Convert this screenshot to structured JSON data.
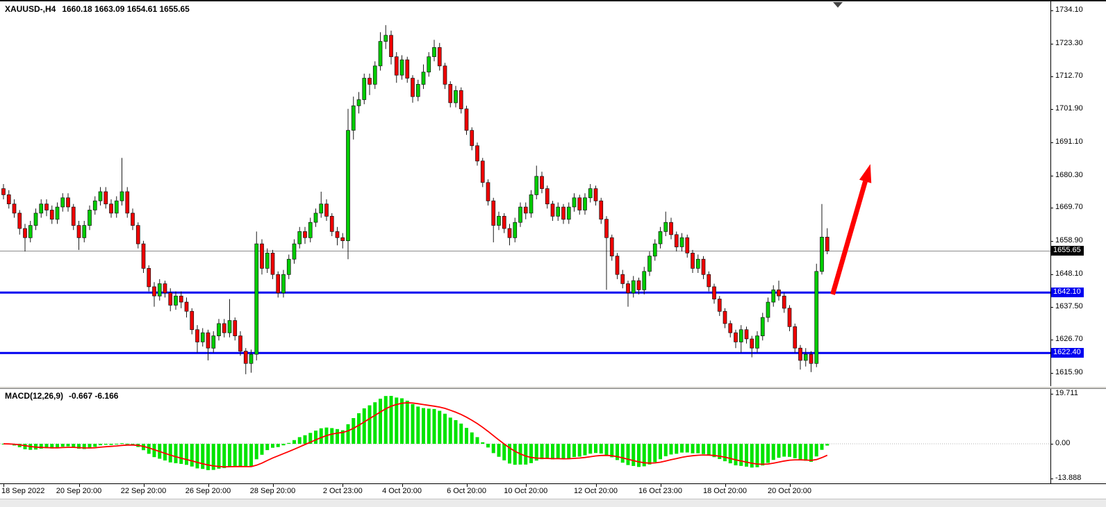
{
  "header": {
    "symbol_period": "XAUUSD-,H4",
    "ohlc": "1660.18 1663.09 1654.61 1655.65"
  },
  "colors": {
    "up": "#00CC00",
    "down": "#EE0000",
    "candle_border": "#111111",
    "wick": "#1b1b1b",
    "hline": "#0000F0",
    "price_line": "#8c8c8c",
    "arrow": "#FE0000",
    "macd_hist": "#00E400",
    "macd_signal": "#FF0000",
    "badge_current_bg": "#000000",
    "badge_line_bg": "#0000F0"
  },
  "chart_data": {
    "type": "candlestick",
    "symbol": "XAUUSD-",
    "timeframe": "H4",
    "title": "XAUUSD-,H4",
    "current": {
      "open": 1660.18,
      "high": 1663.09,
      "low": 1654.61,
      "close": 1655.65
    },
    "current_price_label": "1655.65",
    "price_axis": {
      "ticks": [
        "1734.10",
        "1723.30",
        "1712.70",
        "1701.90",
        "1691.10",
        "1680.30",
        "1669.70",
        "1658.90",
        "1648.10",
        "1637.50",
        "1626.70",
        "1615.90"
      ],
      "top_price": 1734.1,
      "bottom_price": 1615.9
    },
    "horizontal_lines": [
      {
        "price": 1642.1,
        "label": "1642.10"
      },
      {
        "price": 1622.4,
        "label": "1622.40"
      }
    ],
    "time_axis": {
      "ticks": [
        {
          "index": 0,
          "label": "18 Sep 2022"
        },
        {
          "index": 14,
          "label": "20 Sep 20:00"
        },
        {
          "index": 26,
          "label": "22 Sep 20:00"
        },
        {
          "index": 38,
          "label": "26 Sep 20:00"
        },
        {
          "index": 50,
          "label": "28 Sep 20:00"
        },
        {
          "index": 63,
          "label": "2 Oct 23:00"
        },
        {
          "index": 74,
          "label": "4 Oct 20:00"
        },
        {
          "index": 86,
          "label": "6 Oct 20:00"
        },
        {
          "index": 97,
          "label": "10 Oct 20:00"
        },
        {
          "index": 110,
          "label": "12 Oct 20:00"
        },
        {
          "index": 122,
          "label": "16 Oct 23:00"
        },
        {
          "index": 134,
          "label": "18 Oct 20:00"
        },
        {
          "index": 146,
          "label": "20 Oct 20:00"
        }
      ]
    },
    "annotations": {
      "arrow": {
        "from_index": 154,
        "from_price": 1641.5,
        "to_index": 161,
        "to_price": 1684
      }
    },
    "macd": {
      "label": "MACD(12,26,9)",
      "values": "-0.667 -6.166",
      "main_value": "-0.667",
      "signal_value": "-6.166",
      "params": [
        12,
        26,
        9
      ],
      "axis_ticks": [
        "19.711",
        "0.00",
        "-13.888"
      ],
      "ylim": [
        -13.888,
        19.711
      ]
    },
    "candles": [
      [
        1676,
        1677.5,
        1672.5,
        1674
      ],
      [
        1674,
        1675.5,
        1669.5,
        1671
      ],
      [
        1671,
        1672.5,
        1666.5,
        1668
      ],
      [
        1668,
        1669,
        1661,
        1663
      ],
      [
        1663,
        1664.5,
        1655.5,
        1660
      ],
      [
        1660,
        1665.5,
        1658.5,
        1664
      ],
      [
        1664,
        1669.5,
        1662.5,
        1668
      ],
      [
        1668,
        1672.5,
        1666.5,
        1671
      ],
      [
        1671,
        1672.5,
        1667,
        1669
      ],
      [
        1669,
        1670.5,
        1664.5,
        1666
      ],
      [
        1666,
        1671.5,
        1664.5,
        1670
      ],
      [
        1670,
        1674.5,
        1668.5,
        1673
      ],
      [
        1673,
        1674.5,
        1668.5,
        1670
      ],
      [
        1670,
        1671,
        1662.5,
        1664
      ],
      [
        1664,
        1665.5,
        1656,
        1660
      ],
      [
        1660,
        1665.5,
        1658.5,
        1664
      ],
      [
        1664,
        1670.5,
        1662.5,
        1669
      ],
      [
        1669,
        1673.5,
        1667.5,
        1672
      ],
      [
        1672,
        1676.5,
        1670.5,
        1675
      ],
      [
        1675,
        1676.5,
        1669.5,
        1671
      ],
      [
        1671,
        1672.5,
        1666.5,
        1668
      ],
      [
        1668,
        1673.5,
        1666.5,
        1672
      ],
      [
        1672,
        1686,
        1670.5,
        1675
      ],
      [
        1675,
        1676.5,
        1666.5,
        1668
      ],
      [
        1668,
        1669.5,
        1662.5,
        1664
      ],
      [
        1664,
        1665,
        1656.5,
        1658
      ],
      [
        1658,
        1659,
        1648.5,
        1650
      ],
      [
        1650,
        1651,
        1642.5,
        1644
      ],
      [
        1644,
        1645.5,
        1637.5,
        1641
      ],
      [
        1641,
        1646.5,
        1639.5,
        1645
      ],
      [
        1645,
        1646,
        1640.5,
        1642
      ],
      [
        1642,
        1643.5,
        1636,
        1638
      ],
      [
        1638,
        1642.5,
        1636.5,
        1641
      ],
      [
        1641,
        1642.5,
        1637,
        1639
      ],
      [
        1639,
        1640.5,
        1634,
        1636
      ],
      [
        1636,
        1637,
        1628.5,
        1630
      ],
      [
        1630,
        1631.5,
        1622.5,
        1626
      ],
      [
        1626,
        1630.5,
        1624.5,
        1629
      ],
      [
        1629,
        1630,
        1620,
        1624
      ],
      [
        1624,
        1629.5,
        1622.5,
        1628
      ],
      [
        1628,
        1633.5,
        1626.5,
        1632
      ],
      [
        1632,
        1633.5,
        1627.5,
        1629
      ],
      [
        1629,
        1640,
        1627.5,
        1633
      ],
      [
        1633,
        1634,
        1626.5,
        1628
      ],
      [
        1628,
        1629.5,
        1621.5,
        1623
      ],
      [
        1623,
        1624,
        1615.5,
        1619
      ],
      [
        1619,
        1623.5,
        1616,
        1622
      ],
      [
        1622,
        1662,
        1620,
        1658
      ],
      [
        1658,
        1659.5,
        1648,
        1650
      ],
      [
        1650,
        1656.5,
        1648.5,
        1655
      ],
      [
        1655,
        1656,
        1646.5,
        1648
      ],
      [
        1648,
        1649,
        1640.5,
        1642
      ],
      [
        1642,
        1649.5,
        1640.5,
        1648
      ],
      [
        1648,
        1654.5,
        1646.5,
        1653
      ],
      [
        1653,
        1659.5,
        1651.5,
        1658
      ],
      [
        1658,
        1663.5,
        1656.5,
        1662
      ],
      [
        1662,
        1663.5,
        1658,
        1660
      ],
      [
        1660,
        1666.5,
        1658.5,
        1665
      ],
      [
        1665,
        1669.5,
        1663.5,
        1668
      ],
      [
        1668,
        1675,
        1666.5,
        1671
      ],
      [
        1671,
        1672.5,
        1665.5,
        1667
      ],
      [
        1667,
        1668,
        1660.5,
        1662
      ],
      [
        1662,
        1663.5,
        1657.5,
        1660
      ],
      [
        1660,
        1661.5,
        1656.5,
        1659
      ],
      [
        1659,
        1702,
        1653,
        1695
      ],
      [
        1695,
        1706,
        1692,
        1703
      ],
      [
        1703,
        1707.5,
        1700.5,
        1705
      ],
      [
        1705,
        1713.5,
        1703.5,
        1712
      ],
      [
        1712,
        1713.5,
        1706.5,
        1710
      ],
      [
        1710,
        1717.5,
        1708.5,
        1716
      ],
      [
        1716,
        1727,
        1714.5,
        1724
      ],
      [
        1724,
        1729.3,
        1721.5,
        1726
      ],
      [
        1726,
        1727.5,
        1716.5,
        1719
      ],
      [
        1719,
        1720.5,
        1710.5,
        1713
      ],
      [
        1713,
        1719.5,
        1711.5,
        1718
      ],
      [
        1718,
        1719,
        1710.5,
        1712
      ],
      [
        1712,
        1713,
        1704,
        1706
      ],
      [
        1706,
        1711.5,
        1704.5,
        1710
      ],
      [
        1710,
        1716.5,
        1708.5,
        1714
      ],
      [
        1714,
        1720.5,
        1712.5,
        1719
      ],
      [
        1719,
        1724.5,
        1717.5,
        1722
      ],
      [
        1722,
        1723.5,
        1714.5,
        1716
      ],
      [
        1716,
        1717,
        1708.5,
        1710
      ],
      [
        1710,
        1711,
        1702.5,
        1704
      ],
      [
        1704,
        1709.5,
        1702.5,
        1708
      ],
      [
        1708,
        1709,
        1700.5,
        1702
      ],
      [
        1702,
        1703,
        1693.5,
        1695
      ],
      [
        1695,
        1696,
        1688.5,
        1690
      ],
      [
        1690,
        1691,
        1683.5,
        1685
      ],
      [
        1685,
        1686,
        1676.5,
        1678
      ],
      [
        1678,
        1679,
        1670.5,
        1672
      ],
      [
        1672,
        1673,
        1658.5,
        1664
      ],
      [
        1664,
        1668.5,
        1662.5,
        1667
      ],
      [
        1667,
        1668,
        1661.5,
        1663
      ],
      [
        1663,
        1664.5,
        1657.5,
        1660
      ],
      [
        1660,
        1666.5,
        1658.5,
        1665
      ],
      [
        1665,
        1671.5,
        1663.5,
        1670
      ],
      [
        1670,
        1671.5,
        1666,
        1668
      ],
      [
        1668,
        1675.5,
        1666.5,
        1674
      ],
      [
        1674,
        1683.5,
        1672.5,
        1680
      ],
      [
        1680,
        1681.5,
        1674.5,
        1676
      ],
      [
        1676,
        1677,
        1669.5,
        1671
      ],
      [
        1671,
        1672,
        1665.5,
        1667
      ],
      [
        1667,
        1671.5,
        1665.5,
        1670
      ],
      [
        1670,
        1671,
        1664.5,
        1666
      ],
      [
        1666,
        1671.5,
        1664.5,
        1670
      ],
      [
        1670,
        1674.5,
        1668.5,
        1673
      ],
      [
        1673,
        1674,
        1667.5,
        1669
      ],
      [
        1669,
        1674.5,
        1667.5,
        1673
      ],
      [
        1673,
        1677.5,
        1671.5,
        1676
      ],
      [
        1676,
        1677,
        1670.5,
        1672
      ],
      [
        1672,
        1673,
        1664.5,
        1666
      ],
      [
        1666,
        1667,
        1643,
        1660
      ],
      [
        1660,
        1661,
        1652.5,
        1654
      ],
      [
        1654,
        1655,
        1646.5,
        1648
      ],
      [
        1648,
        1649.5,
        1643.5,
        1645
      ],
      [
        1645,
        1646,
        1637.5,
        1642
      ],
      [
        1642,
        1647.5,
        1640.5,
        1646
      ],
      [
        1646,
        1647,
        1641.5,
        1643
      ],
      [
        1643,
        1650.5,
        1641.5,
        1649
      ],
      [
        1649,
        1655.5,
        1647.5,
        1654
      ],
      [
        1654,
        1659.5,
        1652.5,
        1658
      ],
      [
        1658,
        1663.5,
        1656.5,
        1662
      ],
      [
        1662,
        1668.5,
        1660.5,
        1665
      ],
      [
        1665,
        1666.5,
        1659.5,
        1661
      ],
      [
        1661,
        1662,
        1655.5,
        1657
      ],
      [
        1657,
        1661.5,
        1655.5,
        1660
      ],
      [
        1660,
        1661,
        1653.5,
        1655
      ],
      [
        1655,
        1656,
        1648.5,
        1650
      ],
      [
        1650,
        1654.5,
        1648.5,
        1653
      ],
      [
        1653,
        1654,
        1646.5,
        1648
      ],
      [
        1648,
        1649,
        1642.5,
        1644
      ],
      [
        1644,
        1645,
        1638.5,
        1640
      ],
      [
        1640,
        1641,
        1634.5,
        1636
      ],
      [
        1636,
        1637,
        1630.5,
        1632
      ],
      [
        1632,
        1633,
        1627.5,
        1629
      ],
      [
        1629,
        1630,
        1624,
        1626
      ],
      [
        1626,
        1631.5,
        1622.5,
        1630
      ],
      [
        1630,
        1631,
        1625.5,
        1627
      ],
      [
        1627,
        1628,
        1621,
        1624
      ],
      [
        1624,
        1629.5,
        1622.5,
        1628
      ],
      [
        1628,
        1635.5,
        1626.5,
        1634
      ],
      [
        1634,
        1640.5,
        1632.5,
        1639
      ],
      [
        1639,
        1644.5,
        1637.5,
        1643
      ],
      [
        1643,
        1646,
        1639.5,
        1641
      ],
      [
        1641,
        1642,
        1635.5,
        1637
      ],
      [
        1637,
        1638,
        1629.5,
        1631
      ],
      [
        1631,
        1632,
        1622.5,
        1624
      ],
      [
        1624,
        1625,
        1617,
        1620
      ],
      [
        1620,
        1624,
        1618,
        1622
      ],
      [
        1622,
        1623,
        1616.2,
        1619
      ],
      [
        1619,
        1651.5,
        1617.8,
        1649
      ],
      [
        1649,
        1671,
        1648,
        1660.2
      ],
      [
        1660.18,
        1663.09,
        1654.61,
        1655.65
      ]
    ]
  }
}
